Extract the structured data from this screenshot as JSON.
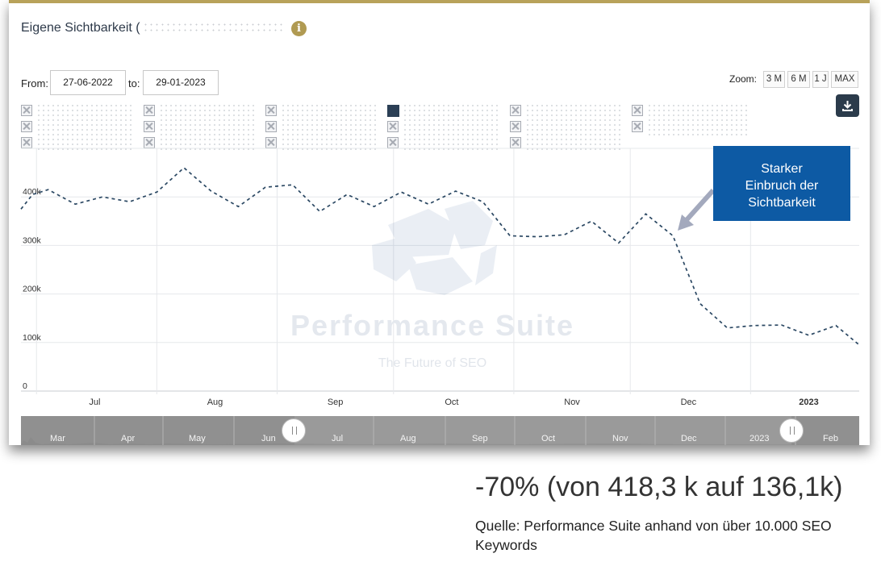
{
  "card": {
    "title": "Eigene Sichtbarkeit (",
    "info_icon": "info-icon"
  },
  "range": {
    "from_label": "From:",
    "from_value": "27-06-2022",
    "to_label": "to:",
    "to_value": "29-01-2023"
  },
  "zoom": {
    "label": "Zoom:",
    "buttons": [
      "3 M",
      "6 M",
      "1 J",
      "MAX"
    ]
  },
  "download_icon": "download-icon",
  "watermark": {
    "title": "Performance Suite",
    "subtitle": "The Future of SEO"
  },
  "callout": {
    "line1": "Starker",
    "line2": "Einbruch der",
    "line3": "Sichtbarkeit"
  },
  "navigator": {
    "labels": [
      "Mar",
      "Apr",
      "May",
      "Jun",
      "Jul",
      "Aug",
      "Sep",
      "Oct",
      "Nov",
      "Dec",
      "2023",
      "Feb"
    ]
  },
  "stat": "-70% (von 418,3 k auf 136,1k)",
  "source": "Quelle: Performance Suite anhand von über 10.000 SEO Keywords",
  "colors": {
    "line": "#2b4863",
    "callout": "#0d5aa4",
    "accent": "#b8a25a"
  },
  "chart_data": {
    "type": "line",
    "title": "",
    "xlabel": "",
    "ylabel": "",
    "x_ticks": [
      "Jul",
      "Aug",
      "Sep",
      "Oct",
      "Nov",
      "Dec",
      "2023"
    ],
    "y_ticks": [
      "0",
      "100k",
      "200k",
      "300k",
      "400k"
    ],
    "ylim": [
      0,
      500000
    ],
    "grid": true,
    "series": [
      {
        "style": "dashed",
        "points": [
          [
            "2022-06-27",
            375000
          ],
          [
            "2022-06-30",
            405000
          ],
          [
            "2022-07-04",
            415000
          ],
          [
            "2022-07-11",
            385000
          ],
          [
            "2022-07-18",
            400000
          ],
          [
            "2022-07-25",
            390000
          ],
          [
            "2022-08-01",
            410000
          ],
          [
            "2022-08-08",
            460000
          ],
          [
            "2022-08-15",
            412000
          ],
          [
            "2022-08-22",
            380000
          ],
          [
            "2022-08-29",
            420000
          ],
          [
            "2022-09-05",
            425000
          ],
          [
            "2022-09-12",
            370000
          ],
          [
            "2022-09-19",
            405000
          ],
          [
            "2022-09-26",
            380000
          ],
          [
            "2022-10-03",
            410000
          ],
          [
            "2022-10-10",
            385000
          ],
          [
            "2022-10-17",
            412000
          ],
          [
            "2022-10-24",
            390000
          ],
          [
            "2022-10-31",
            320000
          ],
          [
            "2022-11-07",
            318000
          ],
          [
            "2022-11-14",
            322000
          ],
          [
            "2022-11-21",
            350000
          ],
          [
            "2022-11-28",
            305000
          ],
          [
            "2022-12-05",
            365000
          ],
          [
            "2022-12-12",
            320000
          ],
          [
            "2022-12-19",
            180000
          ],
          [
            "2022-12-26",
            130000
          ],
          [
            "2023-01-02",
            135000
          ],
          [
            "2023-01-09",
            136000
          ],
          [
            "2023-01-16",
            115000
          ],
          [
            "2023-01-23",
            135000
          ],
          [
            "2023-01-29",
            95000
          ]
        ]
      }
    ]
  }
}
